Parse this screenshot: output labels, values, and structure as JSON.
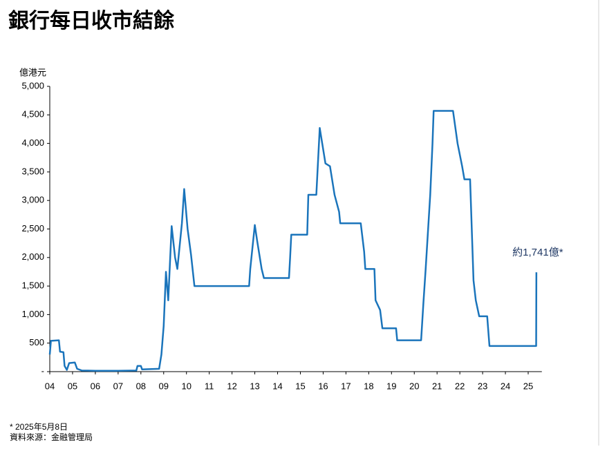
{
  "chart_data": {
    "type": "line",
    "title": "銀行每日收市結餘",
    "y_axis_label": "億港元",
    "annotation": "約1,741億*",
    "footnotes": [
      "* 2025年5月8日",
      "資料來源：金融管理局"
    ],
    "xlim": [
      2004,
      2025.6
    ],
    "xticks": [
      {
        "value": 2004,
        "label": "04"
      },
      {
        "value": 2005,
        "label": "05"
      },
      {
        "value": 2006,
        "label": "06"
      },
      {
        "value": 2007,
        "label": "07"
      },
      {
        "value": 2008,
        "label": "08"
      },
      {
        "value": 2009,
        "label": "09"
      },
      {
        "value": 2010,
        "label": "10"
      },
      {
        "value": 2011,
        "label": "11"
      },
      {
        "value": 2012,
        "label": "12"
      },
      {
        "value": 2013,
        "label": "13"
      },
      {
        "value": 2014,
        "label": "14"
      },
      {
        "value": 2015,
        "label": "15"
      },
      {
        "value": 2016,
        "label": "16"
      },
      {
        "value": 2017,
        "label": "17"
      },
      {
        "value": 2018,
        "label": "18"
      },
      {
        "value": 2019,
        "label": "19"
      },
      {
        "value": 2020,
        "label": "20"
      },
      {
        "value": 2021,
        "label": "21"
      },
      {
        "value": 2022,
        "label": "22"
      },
      {
        "value": 2023,
        "label": "23"
      },
      {
        "value": 2024,
        "label": "24"
      },
      {
        "value": 2025,
        "label": "25"
      }
    ],
    "ylim": [
      0,
      5000
    ],
    "yticks": [
      {
        "value": 0,
        "label": "-"
      },
      500,
      {
        "value": 1000,
        "label": "1,000"
      },
      {
        "value": 1500,
        "label": "1,500"
      },
      {
        "value": 2000,
        "label": "2,000"
      },
      {
        "value": 2500,
        "label": "2,500"
      },
      {
        "value": 3000,
        "label": "3,000"
      },
      {
        "value": 3500,
        "label": "3,500"
      },
      {
        "value": 4000,
        "label": "4,000"
      },
      {
        "value": 4500,
        "label": "4,500"
      },
      {
        "value": 5000,
        "label": "5,000"
      }
    ],
    "grid": false,
    "series": [
      {
        "name": "銀行每日收市結餘",
        "color": "#1a74bb",
        "x": [
          2004.0,
          2004.05,
          2004.4,
          2004.45,
          2004.6,
          2004.65,
          2004.75,
          2004.85,
          2005.1,
          2005.2,
          2005.4,
          2006,
          2007,
          2007.8,
          2007.85,
          2008.0,
          2008.05,
          2008.8,
          2008.9,
          2009.0,
          2009.1,
          2009.2,
          2009.35,
          2009.5,
          2009.6,
          2009.8,
          2009.9,
          2010.05,
          2010.2,
          2010.35,
          2011,
          2012,
          2012.75,
          2012.8,
          2013.0,
          2013.1,
          2013.3,
          2013.4,
          2014,
          2014.5,
          2014.55,
          2014.6,
          2015.3,
          2015.35,
          2015.7,
          2015.85,
          2016.1,
          2016.3,
          2016.5,
          2016.7,
          2016.75,
          2017,
          2017.65,
          2017.8,
          2017.85,
          2018.25,
          2018.3,
          2018.5,
          2018.6,
          2019,
          2019.2,
          2019.25,
          2020.3,
          2020.4,
          2020.5,
          2020.7,
          2020.8,
          2020.85,
          2021.7,
          2021.9,
          2022.1,
          2022.2,
          2022.45,
          2022.6,
          2022.7,
          2022.85,
          2023.2,
          2023.3,
          2024,
          2025.35,
          2025.36
        ],
        "values": [
          300,
          540,
          550,
          350,
          340,
          100,
          30,
          150,
          160,
          50,
          20,
          15,
          15,
          20,
          100,
          100,
          40,
          50,
          300,
          800,
          1750,
          1250,
          2550,
          2000,
          1800,
          2600,
          3200,
          2500,
          2050,
          1500,
          1500,
          1500,
          1500,
          1800,
          2570,
          2300,
          1800,
          1640,
          1640,
          1640,
          2000,
          2400,
          2400,
          3100,
          3100,
          4270,
          3650,
          3600,
          3100,
          2800,
          2600,
          2600,
          2600,
          2100,
          1800,
          1800,
          1250,
          1080,
          760,
          760,
          760,
          550,
          550,
          1200,
          1800,
          3100,
          4000,
          4570,
          4570,
          4000,
          3600,
          3370,
          3370,
          1600,
          1250,
          970,
          970,
          450,
          450,
          450,
          1741
        ]
      }
    ]
  }
}
